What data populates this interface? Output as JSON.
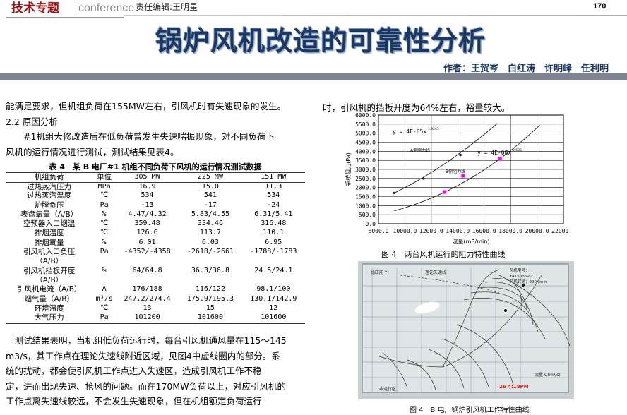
{
  "header": {
    "section_cn": "技术专题",
    "section_en": "conference",
    "editor": "责任编辑:王明星",
    "page_number": "170"
  },
  "article": {
    "title": "锅炉风机改造的可靠性分析",
    "authors": "作者：王贺岑　白红涛　许明峰　任利明"
  },
  "left_text": {
    "line1": "能满足要求，但机组负荷在155MW左右，引风机时有失速现象的发生。",
    "heading": "2.2 原因分析",
    "para1_line1": "　　#1机组大修改造后在低负荷曾发生失速喘振现象，对不同负荷下",
    "para1_line2": "风机的运行情况进行测试，测试结果见表4。"
  },
  "table": {
    "caption": "表 4　某 B 电厂#1 机组不同负荷下风机的运行情况测试数据",
    "headers": [
      "机组负荷",
      "单位",
      "305 MW",
      "225 MW",
      "151 MW"
    ],
    "rows": [
      [
        "过热蒸汽压力",
        "MPa",
        "16.9",
        "15.0",
        "11.3"
      ],
      [
        "过热蒸汽温度",
        "℃",
        "534",
        "541",
        "534"
      ],
      [
        "炉膛负压",
        "Pa",
        "-13",
        "-17",
        "-24"
      ],
      [
        "表盘氧量（A/B）",
        "%",
        "4.47/4.32",
        "5.83/4.55",
        "6.31/5.41"
      ],
      [
        "空预器入口烟温",
        "℃",
        "359.48",
        "334.46",
        "316.48"
      ],
      [
        "排烟温度",
        "℃",
        "126.6",
        "113.7",
        "110.1"
      ],
      [
        "排烟氧量",
        "%",
        "6.01",
        "6.03",
        "6.95"
      ],
      [
        "引风机入口负压",
        "Pa",
        "-4352/-4358",
        "-2618/-2661",
        "-1788/-1783"
      ],
      [
        "（A/B）",
        "",
        "",
        "",
        ""
      ],
      [
        "引风机挡板开度",
        "%",
        "64/64.8",
        "36.3/36.8",
        "24.5/24.1"
      ],
      [
        "（A/B）",
        "",
        "",
        "",
        ""
      ],
      [
        "引风机电流（A/B）",
        "A",
        "176/188",
        "116/122",
        "98.1/100"
      ],
      [
        "烟气量（A/B）",
        "m³/s",
        "247.2/274.4",
        "175.9/195.3",
        "130.1/142.9"
      ],
      [
        "环境温度",
        "℃",
        "13",
        "15",
        "12"
      ],
      [
        "大气压力",
        "Pa",
        "101200",
        "101600",
        "101600"
      ]
    ]
  },
  "bottom_text": [
    "　测试结果表明，当机组低负荷运行时，每台引风机通风量在115～145",
    "m3/s，其工作点在理论失速线附近区域，见图4中虚线圈内的部分。系",
    "统的扰动，都会使引风机工作点进入失速区，造成引风机工作不稳",
    "定，进而出现失速、抢风的问题。而在170MW负荷以上，对应引风机的",
    "工作点离失速线较远，不会发生失速现象，但在机组额定负荷运行"
  ],
  "right_text": {
    "line1": "时，引风机的挡板开度为64%左右，裕量较大。"
  },
  "chart_data": {
    "type": "scatter",
    "title": "",
    "caption": "图 4　两台风机运行的阻力特性曲线",
    "xlabel": "流量(m3/min)",
    "ylabel": "系统阻力(Pa)",
    "xlim": [
      8000,
      22000
    ],
    "ylim": [
      0,
      6000
    ],
    "xticks": [
      "8000.0",
      "10000.0",
      "12000.0",
      "14000.0",
      "16000.0",
      "18000.0",
      "20000.0",
      "22000.0"
    ],
    "yticks": [
      "0.0",
      "500.0",
      "1000.0",
      "1500.0",
      "2000.0",
      "2500.0",
      "3000.0",
      "3500.0",
      "4000.0",
      "4500.0",
      "5000.0",
      "5500.0",
      "6000.0"
    ],
    "grid": true,
    "series": [
      {
        "name": "A侧阻力线",
        "color": "#1a237e",
        "x": [
          9200,
          11400,
          14200
        ],
        "y": [
          1700,
          2500,
          3800
        ],
        "trend": {
          "label": "y = 4E-05x",
          "exp_label": "1.9245",
          "a": 4e-05,
          "b": 1.9245,
          "xrange": [
            9200,
            17000
          ]
        }
      },
      {
        "name": "B侧阻力线",
        "color": "#ff00ff",
        "x": [
          13000,
          14400,
          17200
        ],
        "y": [
          1750,
          2650,
          3600
        ],
        "trend": {
          "label": "y = 4E-08x",
          "exp_label": "2.586",
          "a": 4e-08,
          "b": 2.586,
          "xrange": [
            9200,
            20200
          ]
        }
      }
    ]
  },
  "photo": {
    "caption": "图 4　B 电厂锅炉引风机工作特性曲线",
    "y_label": "比压能 Y",
    "stall_line": "理论失速线",
    "fan_model": "风机型号：",
    "model": "YA15036-8Z",
    "speed": "风机转速：990r/min",
    "x_label": "流量 Q(m³/s)",
    "region": "非运行区",
    "timestamp": "26  4:18PM"
  }
}
